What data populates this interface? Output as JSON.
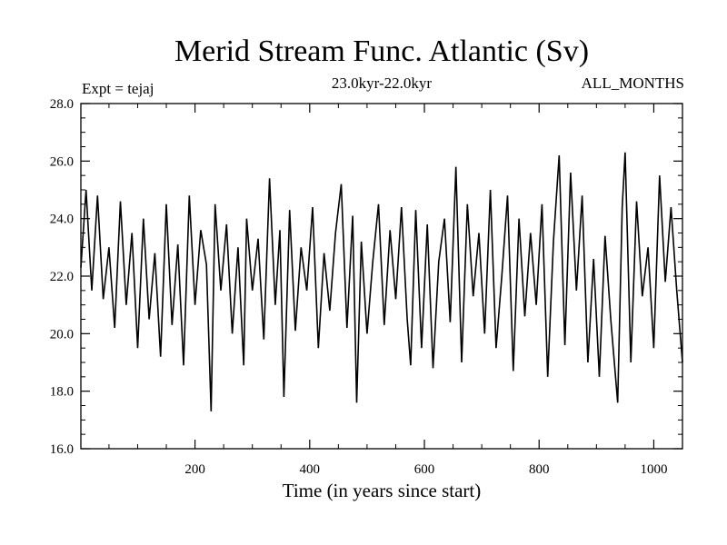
{
  "chart_data": {
    "type": "line",
    "title": "Merid Stream Func. Atlantic (Sv)",
    "subtitle": "23.0kyr-22.0kyr",
    "annotation_left": "Expt = tejaj",
    "annotation_right": "ALL_MONTHS",
    "xlabel": "Time (in years since start)",
    "ylabel": "",
    "xlim": [
      1,
      1050
    ],
    "ylim": [
      16.0,
      28.0
    ],
    "x_ticks": [
      200,
      400,
      600,
      800,
      1000
    ],
    "x_tick_labels": [
      "200",
      "400",
      "600",
      "800",
      "1000"
    ],
    "y_ticks": [
      16,
      18,
      20,
      22,
      24,
      26,
      28
    ],
    "y_tick_labels": [
      "16.0",
      "18.0",
      "20.0",
      "22.0",
      "24.0",
      "26.0",
      "28.0"
    ],
    "grid": false,
    "series": [
      {
        "color": "#000000",
        "x": [
          1,
          10,
          20,
          30,
          40,
          50,
          60,
          70,
          80,
          90,
          100,
          110,
          120,
          130,
          140,
          150,
          160,
          170,
          180,
          190,
          200,
          210,
          220,
          228,
          235,
          245,
          255,
          265,
          275,
          285,
          290,
          300,
          310,
          320,
          330,
          340,
          348,
          355,
          365,
          375,
          385,
          395,
          405,
          415,
          425,
          435,
          445,
          455,
          465,
          475,
          482,
          490,
          500,
          510,
          520,
          530,
          540,
          550,
          560,
          570,
          576,
          585,
          595,
          605,
          615,
          625,
          635,
          645,
          655,
          665,
          675,
          685,
          695,
          705,
          715,
          725,
          735,
          745,
          755,
          765,
          775,
          785,
          795,
          805,
          815,
          825,
          835,
          845,
          855,
          865,
          875,
          885,
          895,
          905,
          915,
          925,
          937,
          945,
          950,
          960,
          970,
          980,
          990,
          1000,
          1010,
          1020,
          1030,
          1040,
          1050
        ],
        "y": [
          22.3,
          25.0,
          21.5,
          24.8,
          21.2,
          23.0,
          20.2,
          24.6,
          21.0,
          23.5,
          19.5,
          24.0,
          20.5,
          22.8,
          19.2,
          24.5,
          20.3,
          23.1,
          18.9,
          24.8,
          21.0,
          23.6,
          22.4,
          17.3,
          24.5,
          21.5,
          23.8,
          20.0,
          23.0,
          18.9,
          24.0,
          21.5,
          23.3,
          19.8,
          25.4,
          21.0,
          23.6,
          17.8,
          24.3,
          20.1,
          23.0,
          21.5,
          24.4,
          19.5,
          22.8,
          20.8,
          23.5,
          25.2,
          20.2,
          24.1,
          17.6,
          23.2,
          20.0,
          22.5,
          24.5,
          20.3,
          23.6,
          21.2,
          24.4,
          20.5,
          18.9,
          24.3,
          19.5,
          23.8,
          18.8,
          22.5,
          24.0,
          20.4,
          25.8,
          19.0,
          24.5,
          21.3,
          23.5,
          20.0,
          25.0,
          19.5,
          22.0,
          24.8,
          18.7,
          24.0,
          20.6,
          23.5,
          21.0,
          24.5,
          18.5,
          23.2,
          26.2,
          19.6,
          25.6,
          21.5,
          24.8,
          19.0,
          22.6,
          18.5,
          23.4,
          20.5,
          17.6,
          24.4,
          26.3,
          19.0,
          24.6,
          21.3,
          23.0,
          19.5,
          25.5,
          21.8,
          24.4,
          21.5,
          19.0
        ]
      }
    ]
  }
}
